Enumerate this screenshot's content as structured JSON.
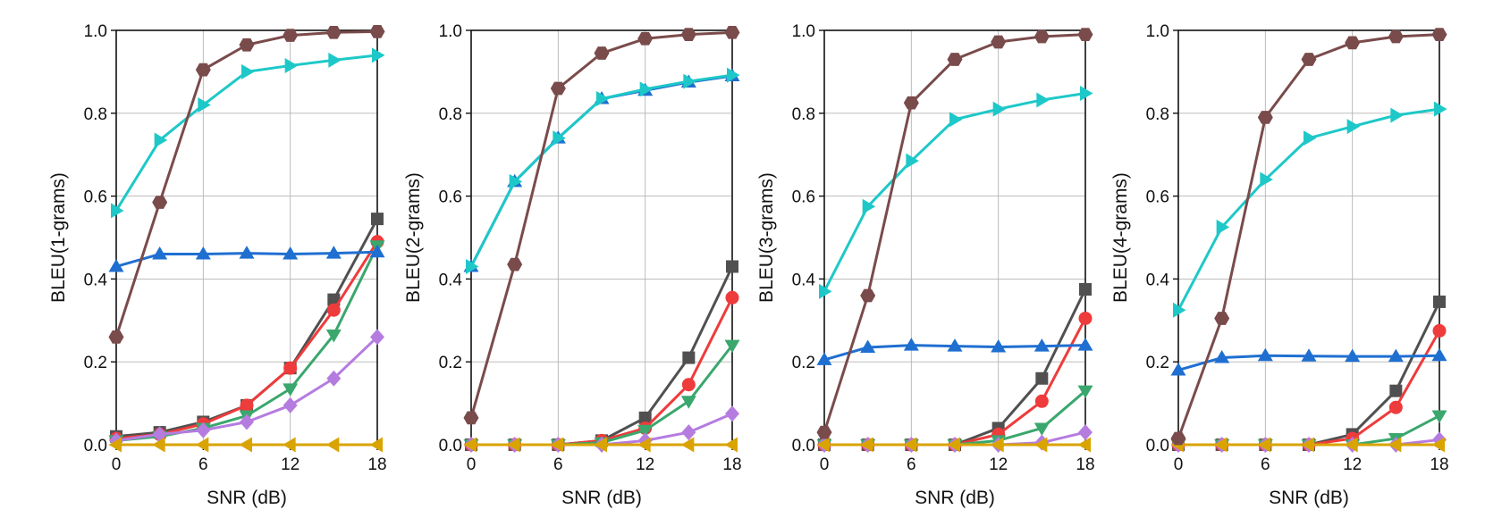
{
  "chart_data": [
    {
      "type": "line",
      "xlabel": "SNR (dB)",
      "ylabel": "BLEU(1-grams)",
      "xlim": [
        0,
        18
      ],
      "ylim": [
        0,
        1
      ],
      "grid": true,
      "x": [
        0,
        3,
        6,
        9,
        12,
        15,
        18
      ],
      "xticks": [
        0,
        6,
        12,
        18
      ],
      "yticks": [
        0.0,
        0.2,
        0.4,
        0.6,
        0.8,
        1.0
      ],
      "series": [
        {
          "name": "square",
          "marker": "square",
          "color": "#505050",
          "values": [
            0.02,
            0.03,
            0.055,
            0.095,
            0.185,
            0.35,
            0.545
          ]
        },
        {
          "name": "circle",
          "marker": "circle",
          "color": "#ee3b3b",
          "values": [
            0.015,
            0.025,
            0.05,
            0.095,
            0.185,
            0.325,
            0.49
          ]
        },
        {
          "name": "triangle-down",
          "marker": "triangle-down",
          "color": "#3aa76d",
          "values": [
            0.01,
            0.02,
            0.04,
            0.07,
            0.135,
            0.265,
            0.48
          ]
        },
        {
          "name": "diamond",
          "marker": "diamond",
          "color": "#b57ce0",
          "values": [
            0.01,
            0.025,
            0.035,
            0.055,
            0.095,
            0.16,
            0.26
          ]
        },
        {
          "name": "triangle-left",
          "marker": "triangle-left",
          "color": "#d9a400",
          "values": [
            0.0,
            0.0,
            0.0,
            0.0,
            0.0,
            0.0,
            0.0
          ]
        },
        {
          "name": "triangle-up",
          "marker": "triangle-up",
          "color": "#1f6fd1",
          "values": [
            0.43,
            0.46,
            0.46,
            0.462,
            0.46,
            0.462,
            0.465
          ]
        },
        {
          "name": "triangle-right",
          "marker": "triangle-right",
          "color": "#1ec8c8",
          "values": [
            0.565,
            0.735,
            0.82,
            0.9,
            0.915,
            0.928,
            0.94
          ]
        },
        {
          "name": "hexagon",
          "marker": "hexagon",
          "color": "#7a4b4b",
          "values": [
            0.26,
            0.585,
            0.905,
            0.965,
            0.988,
            0.995,
            0.997
          ]
        }
      ]
    },
    {
      "type": "line",
      "xlabel": "SNR (dB)",
      "ylabel": "BLEU(2-grams)",
      "xlim": [
        0,
        18
      ],
      "ylim": [
        0,
        1
      ],
      "grid": true,
      "x": [
        0,
        3,
        6,
        9,
        12,
        15,
        18
      ],
      "xticks": [
        0,
        6,
        12,
        18
      ],
      "yticks": [
        0.0,
        0.2,
        0.4,
        0.6,
        0.8,
        1.0
      ],
      "series": [
        {
          "name": "square",
          "marker": "square",
          "color": "#505050",
          "values": [
            0.0,
            0.0,
            0.0,
            0.01,
            0.065,
            0.21,
            0.43
          ]
        },
        {
          "name": "circle",
          "marker": "circle",
          "color": "#ee3b3b",
          "values": [
            0.0,
            0.0,
            0.0,
            0.01,
            0.04,
            0.145,
            0.355
          ]
        },
        {
          "name": "triangle-down",
          "marker": "triangle-down",
          "color": "#3aa76d",
          "values": [
            0.0,
            0.0,
            0.0,
            0.005,
            0.035,
            0.105,
            0.24
          ]
        },
        {
          "name": "diamond",
          "marker": "diamond",
          "color": "#b57ce0",
          "values": [
            0.0,
            0.0,
            0.0,
            0.0,
            0.01,
            0.03,
            0.075
          ]
        },
        {
          "name": "triangle-left",
          "marker": "triangle-left",
          "color": "#d9a400",
          "values": [
            0.0,
            0.0,
            0.0,
            0.0,
            0.0,
            0.0,
            0.0
          ]
        },
        {
          "name": "triangle-up",
          "marker": "triangle-up",
          "color": "#1f6fd1",
          "values": [
            0.43,
            0.635,
            0.74,
            0.835,
            0.855,
            0.875,
            0.89
          ]
        },
        {
          "name": "triangle-right",
          "marker": "triangle-right",
          "color": "#1ec8c8",
          "values": [
            0.43,
            0.635,
            0.74,
            0.835,
            0.858,
            0.877,
            0.892
          ]
        },
        {
          "name": "hexagon",
          "marker": "hexagon",
          "color": "#7a4b4b",
          "values": [
            0.065,
            0.435,
            0.86,
            0.945,
            0.98,
            0.99,
            0.995
          ]
        }
      ]
    },
    {
      "type": "line",
      "xlabel": "SNR (dB)",
      "ylabel": "BLEU(3-grams)",
      "xlim": [
        0,
        18
      ],
      "ylim": [
        0,
        1
      ],
      "grid": true,
      "x": [
        0,
        3,
        6,
        9,
        12,
        15,
        18
      ],
      "xticks": [
        0,
        6,
        12,
        18
      ],
      "yticks": [
        0.0,
        0.2,
        0.4,
        0.6,
        0.8,
        1.0
      ],
      "series": [
        {
          "name": "square",
          "marker": "square",
          "color": "#505050",
          "values": [
            0.0,
            0.0,
            0.0,
            0.0,
            0.04,
            0.16,
            0.375
          ]
        },
        {
          "name": "circle",
          "marker": "circle",
          "color": "#ee3b3b",
          "values": [
            0.0,
            0.0,
            0.0,
            0.0,
            0.025,
            0.105,
            0.305
          ]
        },
        {
          "name": "triangle-down",
          "marker": "triangle-down",
          "color": "#3aa76d",
          "values": [
            0.0,
            0.0,
            0.0,
            0.0,
            0.01,
            0.04,
            0.13
          ]
        },
        {
          "name": "diamond",
          "marker": "diamond",
          "color": "#b57ce0",
          "values": [
            0.0,
            0.0,
            0.0,
            0.0,
            0.0,
            0.005,
            0.03
          ]
        },
        {
          "name": "triangle-left",
          "marker": "triangle-left",
          "color": "#d9a400",
          "values": [
            0.0,
            0.0,
            0.0,
            0.0,
            0.0,
            0.0,
            0.0
          ]
        },
        {
          "name": "triangle-up",
          "marker": "triangle-up",
          "color": "#1f6fd1",
          "values": [
            0.205,
            0.235,
            0.24,
            0.238,
            0.236,
            0.238,
            0.24
          ]
        },
        {
          "name": "triangle-right",
          "marker": "triangle-right",
          "color": "#1ec8c8",
          "values": [
            0.37,
            0.575,
            0.685,
            0.785,
            0.81,
            0.832,
            0.848
          ]
        },
        {
          "name": "hexagon",
          "marker": "hexagon",
          "color": "#7a4b4b",
          "values": [
            0.03,
            0.36,
            0.825,
            0.93,
            0.972,
            0.985,
            0.99
          ]
        }
      ]
    },
    {
      "type": "line",
      "xlabel": "SNR (dB)",
      "ylabel": "BLEU(4-grams)",
      "xlim": [
        0,
        18
      ],
      "ylim": [
        0,
        1
      ],
      "grid": true,
      "x": [
        0,
        3,
        6,
        9,
        12,
        15,
        18
      ],
      "xticks": [
        0,
        6,
        12,
        18
      ],
      "yticks": [
        0.0,
        0.2,
        0.4,
        0.6,
        0.8,
        1.0
      ],
      "series": [
        {
          "name": "square",
          "marker": "square",
          "color": "#505050",
          "values": [
            0.0,
            0.0,
            0.0,
            0.0,
            0.025,
            0.13,
            0.345
          ]
        },
        {
          "name": "circle",
          "marker": "circle",
          "color": "#ee3b3b",
          "values": [
            0.0,
            0.0,
            0.0,
            0.0,
            0.015,
            0.09,
            0.275
          ]
        },
        {
          "name": "triangle-down",
          "marker": "triangle-down",
          "color": "#3aa76d",
          "values": [
            0.0,
            0.0,
            0.0,
            0.0,
            0.0,
            0.015,
            0.07
          ]
        },
        {
          "name": "diamond",
          "marker": "diamond",
          "color": "#b57ce0",
          "values": [
            0.0,
            0.0,
            0.0,
            0.0,
            0.0,
            0.0,
            0.012
          ]
        },
        {
          "name": "triangle-left",
          "marker": "triangle-left",
          "color": "#d9a400",
          "values": [
            0.0,
            0.0,
            0.0,
            0.0,
            0.0,
            0.0,
            0.0
          ]
        },
        {
          "name": "triangle-up",
          "marker": "triangle-up",
          "color": "#1f6fd1",
          "values": [
            0.18,
            0.21,
            0.215,
            0.214,
            0.213,
            0.213,
            0.215
          ]
        },
        {
          "name": "triangle-right",
          "marker": "triangle-right",
          "color": "#1ec8c8",
          "values": [
            0.325,
            0.525,
            0.64,
            0.74,
            0.768,
            0.795,
            0.81
          ]
        },
        {
          "name": "hexagon",
          "marker": "hexagon",
          "color": "#7a4b4b",
          "values": [
            0.015,
            0.305,
            0.79,
            0.93,
            0.97,
            0.985,
            0.99
          ]
        }
      ]
    }
  ]
}
